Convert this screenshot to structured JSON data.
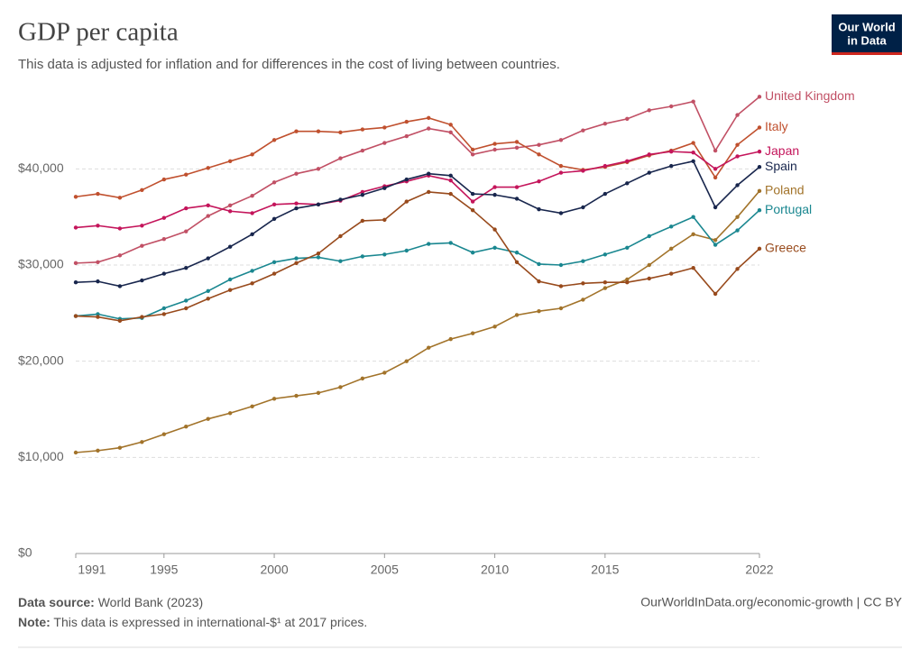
{
  "logo": [
    "Our World",
    "in Data"
  ],
  "footer": {
    "source_label": "Data source:",
    "source": "World Bank (2023)",
    "note_label": "Note:",
    "note": "This data is expressed in international-$¹ at 2017 prices.",
    "right": "OurWorldInData.org/economic-growth | CC BY"
  },
  "chart_data": {
    "type": "line",
    "title": "GDP per capita",
    "subtitle": "This data is adjusted for inflation and for differences in the cost of living between countries.",
    "x": [
      1991,
      1992,
      1993,
      1994,
      1995,
      1996,
      1997,
      1998,
      1999,
      2000,
      2001,
      2002,
      2003,
      2004,
      2005,
      2006,
      2007,
      2008,
      2009,
      2010,
      2011,
      2012,
      2013,
      2014,
      2015,
      2016,
      2017,
      2018,
      2019,
      2020,
      2021,
      2022
    ],
    "xlim": [
      1991,
      2022
    ],
    "xticks": [
      1991,
      1995,
      2000,
      2005,
      2010,
      2015,
      2022
    ],
    "ylim": [
      0,
      48000
    ],
    "yticks": [
      {
        "value": 0,
        "label": "$0"
      },
      {
        "value": 10000,
        "label": "$10,000"
      },
      {
        "value": 20000,
        "label": "$20,000"
      },
      {
        "value": 30000,
        "label": "$30,000"
      },
      {
        "value": 40000,
        "label": "$40,000"
      }
    ],
    "grid": true,
    "series": [
      {
        "name": "United Kingdom",
        "color": "#c15065",
        "values": [
          30200,
          30300,
          31000,
          32000,
          32700,
          33500,
          35100,
          36200,
          37200,
          38600,
          39500,
          40000,
          41100,
          41900,
          42700,
          43400,
          44200,
          43800,
          41500,
          42000,
          42200,
          42500,
          43000,
          44000,
          44700,
          45200,
          46100,
          46500,
          47000,
          41900,
          45600,
          47500
        ]
      },
      {
        "name": "Italy",
        "color": "#c0502e",
        "values": [
          37100,
          37400,
          37000,
          37800,
          38900,
          39400,
          40100,
          40800,
          41500,
          43000,
          43900,
          43900,
          43800,
          44100,
          44300,
          44900,
          45300,
          44600,
          42000,
          42600,
          42800,
          41500,
          40300,
          39900,
          40200,
          40700,
          41400,
          41900,
          42700,
          39100,
          42500,
          44300
        ]
      },
      {
        "name": "Japan",
        "color": "#c4155b",
        "values": [
          33900,
          34100,
          33800,
          34100,
          34900,
          35900,
          36200,
          35600,
          35400,
          36300,
          36400,
          36300,
          36700,
          37600,
          38200,
          38700,
          39300,
          38800,
          36600,
          38100,
          38100,
          38700,
          39600,
          39800,
          40300,
          40800,
          41500,
          41800,
          41700,
          40000,
          41300,
          41800
        ]
      },
      {
        "name": "Spain",
        "color": "#18264d",
        "values": [
          28200,
          28300,
          27800,
          28400,
          29100,
          29700,
          30700,
          31900,
          33200,
          34800,
          35900,
          36300,
          36800,
          37300,
          38000,
          38900,
          39500,
          39300,
          37400,
          37300,
          36900,
          35800,
          35400,
          36000,
          37400,
          38500,
          39600,
          40300,
          40800,
          36000,
          38300,
          40200
        ]
      },
      {
        "name": "Poland",
        "color": "#a2732a",
        "values": [
          10500,
          10700,
          11000,
          11600,
          12400,
          13200,
          14000,
          14600,
          15300,
          16100,
          16400,
          16700,
          17300,
          18200,
          18800,
          20000,
          21400,
          22300,
          22900,
          23600,
          24800,
          25200,
          25500,
          26400,
          27600,
          28500,
          30000,
          31700,
          33200,
          32600,
          35000,
          37700
        ]
      },
      {
        "name": "Portugal",
        "color": "#1a8790",
        "values": [
          24700,
          24900,
          24400,
          24500,
          25500,
          26300,
          27300,
          28500,
          29400,
          30300,
          30700,
          30800,
          30400,
          30900,
          31100,
          31500,
          32200,
          32300,
          31300,
          31800,
          31300,
          30100,
          30000,
          30400,
          31100,
          31800,
          33000,
          34000,
          35000,
          32100,
          33600,
          35700
        ]
      },
      {
        "name": "Greece",
        "color": "#984a1c",
        "values": [
          24700,
          24600,
          24200,
          24600,
          24900,
          25500,
          26500,
          27400,
          28100,
          29100,
          30200,
          31200,
          33000,
          34600,
          34700,
          36600,
          37600,
          37400,
          35700,
          33700,
          30300,
          28300,
          27800,
          28100,
          28200,
          28200,
          28600,
          29100,
          29700,
          27000,
          29600,
          31700
        ]
      }
    ]
  }
}
